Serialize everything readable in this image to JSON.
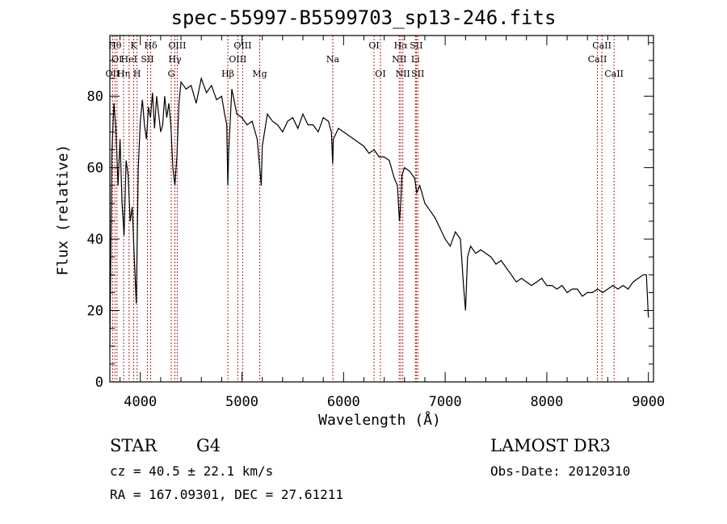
{
  "title": "spec-55997-B5599703_sp13-246.fits",
  "footer": {
    "class_label": "STAR",
    "subclass_label": "G4",
    "cz": "cz = 40.5 ± 22.1 km/s",
    "radec": "RA = 167.09301, DEC =  27.61211",
    "survey": "LAMOST DR3",
    "obsdate": "Obs-Date: 20120310"
  },
  "chart_data": {
    "type": "line",
    "title": "spec-55997-B5599703_sp13-246.fits",
    "xlabel": "Wavelength (Å)",
    "ylabel": "Flux (relative)",
    "xlim": [
      3700,
      9050
    ],
    "ylim": [
      0,
      97
    ],
    "xticks": [
      4000,
      5000,
      6000,
      7000,
      8000,
      9000
    ],
    "yticks": [
      0,
      20,
      40,
      60,
      80
    ],
    "grid": false,
    "line_color": "#000000",
    "marker_color": "#b22222",
    "series": [
      {
        "x": [
          3700,
          3720,
          3740,
          3760,
          3780,
          3800,
          3820,
          3840,
          3860,
          3880,
          3900,
          3920,
          3940,
          3960,
          3980,
          4000,
          4020,
          4040,
          4060,
          4080,
          4100,
          4120,
          4140,
          4160,
          4180,
          4200,
          4220,
          4240,
          4260,
          4280,
          4300,
          4320,
          4340,
          4360,
          4380,
          4400,
          4450,
          4500,
          4550,
          4600,
          4650,
          4700,
          4750,
          4800,
          4830,
          4850,
          4861,
          4870,
          4900,
          4950,
          5000,
          5050,
          5100,
          5150,
          5175,
          5190,
          5200,
          5250,
          5300,
          5350,
          5400,
          5450,
          5500,
          5550,
          5600,
          5650,
          5700,
          5750,
          5800,
          5850,
          5880,
          5893,
          5900,
          5950,
          6000,
          6050,
          6100,
          6150,
          6200,
          6250,
          6300,
          6350,
          6400,
          6450,
          6500,
          6530,
          6550,
          6563,
          6575,
          6600,
          6650,
          6700,
          6720,
          6750,
          6800,
          6850,
          6900,
          6950,
          7000,
          7050,
          7100,
          7150,
          7180,
          7200,
          7220,
          7250,
          7300,
          7350,
          7400,
          7450,
          7500,
          7550,
          7600,
          7650,
          7700,
          7750,
          7800,
          7850,
          7900,
          7950,
          8000,
          8050,
          8100,
          8150,
          8200,
          8250,
          8300,
          8350,
          8400,
          8450,
          8500,
          8550,
          8600,
          8650,
          8700,
          8750,
          8800,
          8850,
          8900,
          8950,
          8980,
          9000
        ],
        "y": [
          10,
          64,
          78,
          71,
          55,
          68,
          50,
          41,
          62,
          58,
          45,
          49,
          35,
          22,
          60,
          73,
          79,
          72,
          68,
          77,
          74,
          81,
          71,
          80,
          75,
          70,
          72,
          80,
          74,
          78,
          72,
          60,
          55,
          63,
          78,
          84,
          82,
          83,
          78,
          85,
          81,
          83,
          79,
          80,
          75,
          72,
          55,
          65,
          82,
          75,
          74,
          72,
          73,
          68,
          60,
          55,
          66,
          75,
          73,
          72,
          70,
          73,
          74,
          71,
          75,
          72,
          72,
          70,
          74,
          73,
          70,
          61,
          68,
          71,
          70,
          69,
          68,
          67,
          66,
          64,
          65,
          63,
          63,
          62,
          57,
          55,
          45,
          50,
          58,
          60,
          59,
          57,
          53,
          55,
          50,
          48,
          46,
          43,
          40,
          38,
          42,
          40,
          27,
          20,
          35,
          38,
          36,
          37,
          36,
          35,
          33,
          34,
          32,
          30,
          28,
          29,
          28,
          27,
          28,
          29,
          27,
          27,
          26,
          27,
          25,
          26,
          26,
          24,
          25,
          25,
          26,
          25,
          26,
          27,
          26,
          27,
          26,
          28,
          29,
          30,
          30,
          18
        ]
      }
    ],
    "line_markers": [
      {
        "label": "OII",
        "x": 3727,
        "row": 2
      },
      {
        "label": "Hθ",
        "x": 3750,
        "row": 0
      },
      {
        "label": "OI",
        "x": 3770,
        "row": 1
      },
      {
        "label": "Hη",
        "x": 3835,
        "row": 2
      },
      {
        "label": "HeI",
        "x": 3889,
        "row": 1
      },
      {
        "label": "K",
        "x": 3934,
        "row": 0
      },
      {
        "label": "H",
        "x": 3968,
        "row": 2
      },
      {
        "label": "SII",
        "x": 4070,
        "row": 1
      },
      {
        "label": "Hδ",
        "x": 4102,
        "row": 0
      },
      {
        "label": "G",
        "x": 4304,
        "row": 2
      },
      {
        "label": "Hγ",
        "x": 4340,
        "row": 1
      },
      {
        "label": "OIII",
        "x": 4363,
        "row": 0
      },
      {
        "label": "Hβ",
        "x": 4861,
        "row": 2
      },
      {
        "label": "OIII",
        "x": 4959,
        "row": 1
      },
      {
        "label": "OIII",
        "x": 5007,
        "row": 0
      },
      {
        "label": "Mg",
        "x": 5175,
        "row": 2
      },
      {
        "label": "Na",
        "x": 5894,
        "row": 1
      },
      {
        "label": "OI",
        "x": 6300,
        "row": 0
      },
      {
        "label": "OI",
        "x": 6363,
        "row": 2
      },
      {
        "label": "NII",
        "x": 6548,
        "row": 1
      },
      {
        "label": "Hα",
        "x": 6563,
        "row": 0
      },
      {
        "label": "NII",
        "x": 6583,
        "row": 2
      },
      {
        "label": "Li",
        "x": 6707,
        "row": 1
      },
      {
        "label": "SII",
        "x": 6716,
        "row": 0
      },
      {
        "label": "SII",
        "x": 6731,
        "row": 2
      },
      {
        "label": "CaII",
        "x": 8498,
        "row": 1
      },
      {
        "label": "CaII",
        "x": 8542,
        "row": 0
      },
      {
        "label": "CaII",
        "x": 8662,
        "row": 2
      }
    ]
  }
}
